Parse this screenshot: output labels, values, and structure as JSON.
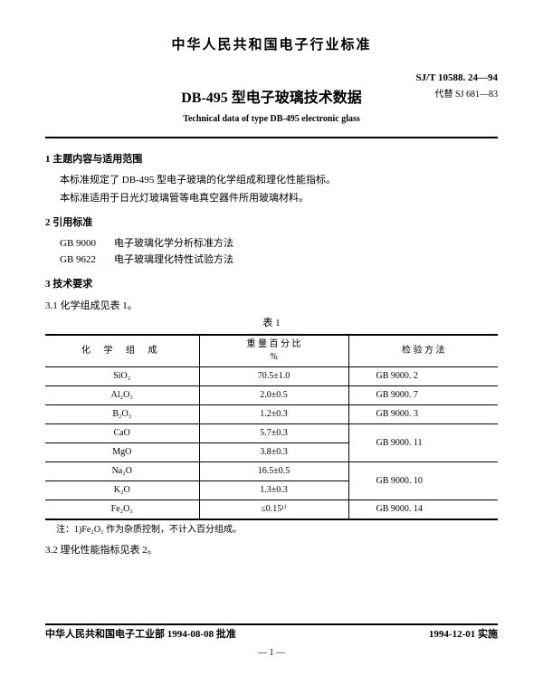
{
  "header": {
    "org_title": "中华人民共和国电子行业标准",
    "doc_id": "SJ/T 10588. 24—94",
    "main_title": "DB-495 型电子玻璃技术数据",
    "replaces": "代替 SJ 681—83",
    "subtitle_en": "Technical data of type DB-495 electronic glass"
  },
  "sections": {
    "s1_h": "1  主题内容与适用范围",
    "s1_p1": "本标准规定了 DB-495 型电子玻璃的化学组成和理化性能指标。",
    "s1_p2": "本标准适用于日光灯玻璃管等电真空器件所用玻璃材料。",
    "s2_h": "2  引用标准",
    "refs": [
      {
        "code": "GB 9000",
        "title": "电子玻璃化学分析标准方法"
      },
      {
        "code": "GB 9622",
        "title": "电子玻璃理化特性试验方法"
      }
    ],
    "s3_h": "3  技术要求",
    "s3_1": "3.1  化学组成见表 1。",
    "s3_2": "3.2  理化性能指标见表 2。"
  },
  "table1": {
    "caption": "表 1",
    "headers": {
      "col1": "化 学 组 成",
      "col2_l1": "重 量 百 分 比",
      "col2_l2": "%",
      "col3": "检  验  方  法"
    },
    "rows": [
      {
        "c1": "SiO₂",
        "c2": "70.5±1.0",
        "c3": "GB 9000. 2",
        "merge": 1
      },
      {
        "c1": "Al₂O₃",
        "c2": "2.0±0.5",
        "c3": "GB 9000. 7",
        "merge": 1
      },
      {
        "c1": "B₂O₃",
        "c2": "1.2±0.3",
        "c3": "GB 9000. 3",
        "merge": 1
      },
      {
        "c1": "CaO",
        "c2": "5.7±0.3",
        "c3": "GB 9000. 11",
        "merge": 2
      },
      {
        "c1": "MgO",
        "c2": "3.8±0.3",
        "c3": "",
        "merge": 0
      },
      {
        "c1": "Na₂O",
        "c2": "16.5±0.5",
        "c3": "GB 9000. 10",
        "merge": 2
      },
      {
        "c1": "K₂O",
        "c2": "1.3±0.3",
        "c3": "",
        "merge": 0
      },
      {
        "c1": "Fe₂O₃",
        "c2": "≤0.15¹⁾",
        "c3": "GB 9000. 14",
        "merge": 1
      }
    ],
    "note": "注：1)Fe₂O₃ 作为杂质控制，不计入百分组成。"
  },
  "footer": {
    "left": "中华人民共和国电子工业部 1994-08-08 批准",
    "right": "1994-12-01 实施",
    "page": "— 1 —"
  }
}
